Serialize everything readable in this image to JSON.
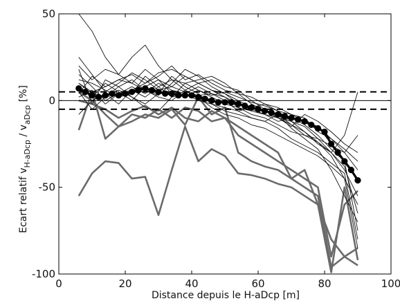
{
  "chart_data": {
    "type": "line",
    "title": "",
    "xlabel": "Distance depuis le H-aDcp  [m]",
    "ylabel": {
      "prefix": "Ecart relatif v",
      "sub1": "H-aDcp",
      "mid": "  / v",
      "sub2": "aDcp",
      "suffix": "  [%]"
    },
    "xlim": [
      0,
      100
    ],
    "ylim": [
      -100,
      50
    ],
    "xticks": [
      "0",
      "20",
      "40",
      "60",
      "80",
      "100"
    ],
    "yticks": [
      "-100",
      "-50",
      "0",
      "50"
    ],
    "reference_lines": {
      "zero": 0,
      "band": [
        -5,
        5
      ]
    },
    "colors": {
      "thin": "#111111",
      "gray": "#6a6a6a",
      "mean": "#000000"
    },
    "series_thin": [
      {
        "x": [
          6,
          10,
          14,
          18,
          22,
          26,
          30,
          34,
          38,
          42,
          46,
          50,
          54,
          58,
          62,
          66,
          70,
          74,
          78,
          82,
          86,
          90
        ],
        "y": [
          50,
          40,
          25,
          15,
          10,
          18,
          12,
          8,
          5,
          3,
          4,
          2,
          -2,
          -5,
          -8,
          -10,
          -12,
          -15,
          -22,
          -30,
          -40,
          -55
        ]
      },
      {
        "x": [
          6,
          10,
          14,
          18,
          22,
          26,
          30,
          34,
          38,
          42,
          46,
          50,
          54,
          58,
          62,
          66,
          70,
          74,
          78,
          82,
          86,
          90
        ],
        "y": [
          20,
          12,
          18,
          15,
          25,
          32,
          20,
          12,
          10,
          6,
          3,
          5,
          2,
          -1,
          -3,
          -6,
          -8,
          -12,
          -15,
          -25,
          -35,
          -45
        ]
      },
      {
        "x": [
          6,
          10,
          14,
          18,
          22,
          26,
          30,
          34,
          38,
          42,
          46,
          50,
          54,
          58,
          62,
          66,
          70,
          74,
          78,
          82,
          86,
          90
        ],
        "y": [
          10,
          5,
          8,
          12,
          15,
          10,
          14,
          20,
          12,
          15,
          10,
          6,
          4,
          2,
          -2,
          -4,
          -8,
          -10,
          -18,
          -22,
          -30,
          -20
        ]
      },
      {
        "x": [
          6,
          10,
          14,
          18,
          22,
          26,
          30,
          34,
          38,
          42,
          46,
          50,
          54,
          58,
          62,
          66,
          70,
          74,
          78,
          82,
          86,
          90
        ],
        "y": [
          5,
          -5,
          2,
          8,
          12,
          6,
          3,
          10,
          18,
          14,
          8,
          4,
          -2,
          -4,
          -6,
          -8,
          -10,
          -12,
          -15,
          -22,
          -28,
          -35
        ]
      },
      {
        "x": [
          6,
          10,
          14,
          18,
          22,
          26,
          30,
          34,
          38,
          42,
          46,
          50,
          54,
          58,
          62,
          66,
          70,
          74,
          78,
          82,
          86,
          90
        ],
        "y": [
          15,
          8,
          0,
          4,
          6,
          2,
          8,
          12,
          6,
          10,
          12,
          8,
          6,
          0,
          -5,
          -10,
          -15,
          -8,
          -12,
          -18,
          -25,
          -30
        ]
      },
      {
        "x": [
          6,
          10,
          14,
          18,
          22,
          26,
          30,
          34,
          38,
          42,
          46,
          50,
          54,
          58,
          62,
          66,
          70,
          74,
          78,
          82,
          86,
          90
        ],
        "y": [
          8,
          2,
          10,
          5,
          0,
          8,
          12,
          4,
          2,
          6,
          2,
          -2,
          -4,
          -8,
          -10,
          -14,
          -18,
          -20,
          -22,
          -26,
          -30,
          -40
        ]
      },
      {
        "x": [
          6,
          10,
          14,
          18,
          22,
          26,
          30,
          34,
          38,
          42,
          46,
          50,
          54,
          58,
          62,
          66,
          70,
          74,
          78,
          82,
          86,
          90
        ],
        "y": [
          25,
          15,
          5,
          10,
          16,
          12,
          6,
          8,
          14,
          10,
          6,
          2,
          -4,
          -6,
          -8,
          -12,
          -10,
          -14,
          -20,
          -28,
          -35,
          -75
        ]
      },
      {
        "x": [
          6,
          10,
          14,
          18,
          22,
          26,
          30,
          34,
          38,
          42,
          46,
          50,
          54,
          58,
          62,
          66,
          70,
          74,
          78,
          82,
          86,
          90
        ],
        "y": [
          2,
          6,
          -2,
          4,
          8,
          4,
          10,
          6,
          4,
          8,
          4,
          0,
          -6,
          -4,
          -2,
          -6,
          -12,
          -18,
          -25,
          -30,
          -20,
          5
        ]
      },
      {
        "x": [
          6,
          10,
          14,
          18,
          22,
          26,
          30,
          34,
          38,
          42,
          46,
          50,
          54,
          58,
          62,
          66,
          70,
          74,
          78,
          82,
          86,
          90
        ],
        "y": [
          12,
          10,
          6,
          2,
          4,
          14,
          8,
          2,
          10,
          12,
          14,
          10,
          4,
          -2,
          -6,
          -10,
          -14,
          -20,
          -24,
          -32,
          -45,
          -60
        ]
      },
      {
        "x": [
          6,
          10,
          14,
          18,
          22,
          26,
          30,
          34,
          38,
          42,
          46,
          50,
          54,
          58,
          62,
          66,
          70,
          74,
          78,
          82,
          86,
          90
        ],
        "y": [
          18,
          -2,
          12,
          8,
          2,
          -2,
          4,
          14,
          8,
          4,
          -2,
          -6,
          -8,
          -10,
          -12,
          -16,
          -22,
          -26,
          -30,
          -36,
          -42,
          -80
        ]
      },
      {
        "x": [
          6,
          10,
          14,
          18,
          22,
          26,
          30,
          34,
          38,
          42,
          46,
          50,
          54,
          58,
          62,
          66,
          70,
          74,
          78,
          82,
          86,
          90
        ],
        "y": [
          4,
          14,
          8,
          12,
          10,
          6,
          2,
          0,
          6,
          2,
          -4,
          -8,
          -10,
          -14,
          -16,
          -20,
          -24,
          -28,
          -32,
          -38,
          -45,
          -85
        ]
      },
      {
        "x": [
          6,
          10,
          14,
          18,
          22,
          26,
          30,
          34,
          38,
          42,
          46,
          50,
          54,
          58,
          62,
          66,
          70,
          74,
          78,
          82,
          86,
          90
        ],
        "y": [
          -8,
          0,
          4,
          -2,
          6,
          10,
          16,
          18,
          14,
          10,
          6,
          4,
          0,
          -4,
          -6,
          -8,
          -14,
          -18,
          -24,
          -30,
          -38,
          -65
        ]
      },
      {
        "x": [
          6,
          10,
          14,
          18,
          22,
          26,
          30,
          34,
          38,
          42,
          46,
          50,
          54,
          58,
          62,
          66,
          70,
          74,
          78,
          82,
          86,
          90
        ],
        "y": [
          10,
          4,
          2,
          6,
          2,
          -4,
          -6,
          2,
          4,
          0,
          -2,
          -4,
          -6,
          -10,
          -12,
          -8,
          -16,
          -22,
          -28,
          -40,
          -55,
          -70
        ]
      }
    ],
    "series_gray": [
      {
        "x": [
          6,
          10,
          14,
          18,
          22,
          26,
          30,
          34,
          38,
          42,
          46,
          50,
          54,
          58,
          62,
          66,
          70,
          74,
          78,
          82,
          86,
          90
        ],
        "y": [
          -55,
          -42,
          -35,
          -36,
          -45,
          -44,
          -66,
          -40,
          -15,
          -35,
          -28,
          -32,
          -42,
          -43,
          -45,
          -48,
          -50,
          -55,
          -60,
          -80,
          -90,
          -95
        ]
      },
      {
        "x": [
          6,
          10,
          14,
          18,
          22,
          26,
          30,
          34,
          38,
          42,
          46,
          50,
          54,
          58,
          62,
          66,
          70,
          74,
          78,
          82,
          86,
          90
        ],
        "y": [
          -17,
          5,
          -22,
          -15,
          -8,
          -10,
          -5,
          -10,
          -4,
          -6,
          -12,
          -10,
          -20,
          -25,
          -30,
          -35,
          -40,
          -45,
          -50,
          -90,
          -60,
          -52
        ]
      },
      {
        "x": [
          6,
          10,
          14,
          18,
          22,
          26,
          30,
          34,
          38,
          42,
          46,
          50,
          54,
          58,
          62,
          66,
          70,
          74,
          78,
          82,
          86,
          90
        ],
        "y": [
          5,
          0,
          -8,
          -15,
          -12,
          -8,
          -10,
          -5,
          -14,
          2,
          -8,
          -4,
          -30,
          -35,
          -38,
          -40,
          -45,
          -50,
          -55,
          -96,
          -90,
          -85
        ]
      },
      {
        "x": [
          6,
          10,
          14,
          18,
          22,
          26,
          30,
          34,
          38,
          42,
          46,
          50,
          54,
          58,
          62,
          66,
          70,
          74,
          78,
          82,
          86,
          90
        ],
        "y": [
          0,
          -2,
          -5,
          -10,
          -6,
          -3,
          -8,
          -4,
          -10,
          -12,
          -6,
          -10,
          -15,
          -20,
          -25,
          -30,
          -45,
          -40,
          -60,
          -99,
          -50,
          -92
        ]
      }
    ],
    "series_mean": {
      "x": [
        6,
        8,
        10,
        12,
        14,
        16,
        18,
        20,
        22,
        24,
        26,
        28,
        30,
        32,
        34,
        36,
        38,
        40,
        42,
        44,
        46,
        48,
        50,
        52,
        54,
        56,
        58,
        60,
        62,
        64,
        66,
        68,
        70,
        72,
        74,
        76,
        78,
        80,
        82,
        84,
        86,
        88,
        90
      ],
      "y": [
        7,
        5,
        3,
        2,
        3,
        4,
        3,
        4,
        5,
        6,
        7,
        6,
        5,
        4,
        4,
        3,
        3,
        3,
        2,
        1,
        0,
        -1,
        -1,
        -1,
        -2,
        -3,
        -4,
        -5,
        -6,
        -7,
        -8,
        -9,
        -10,
        -11,
        -12,
        -14,
        -16,
        -18,
        -25,
        -30,
        -35,
        -40,
        -46
      ]
    }
  }
}
